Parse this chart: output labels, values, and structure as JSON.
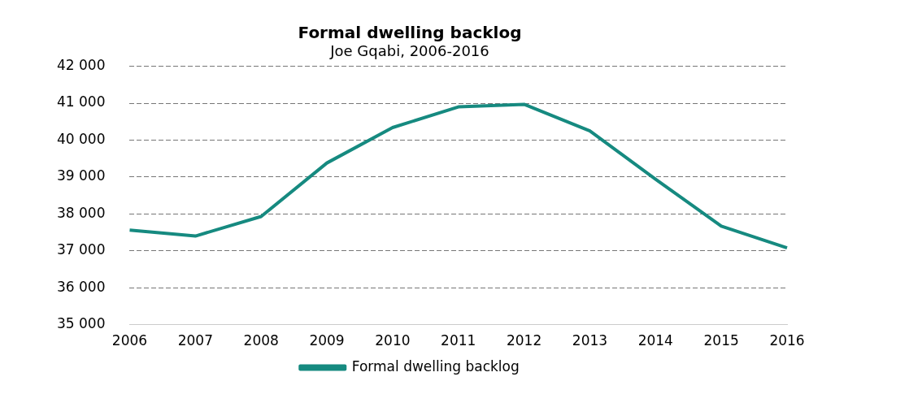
{
  "chart_data": {
    "type": "line",
    "title": "Formal dwelling backlog",
    "subtitle": "Joe Gqabi, 2006-2016",
    "categories": [
      "2006",
      "2007",
      "2008",
      "2009",
      "2010",
      "2011",
      "2012",
      "2013",
      "2014",
      "2015",
      "2016"
    ],
    "series": [
      {
        "name": "Formal dwelling backlog",
        "color": "#168a80",
        "values": [
          37560,
          37400,
          37930,
          39380,
          40340,
          40900,
          40970,
          40250,
          38940,
          37670,
          37080
        ]
      }
    ],
    "ylim": [
      35000,
      42000
    ],
    "yticks": [
      {
        "value": 35000,
        "label": "35 000"
      },
      {
        "value": 36000,
        "label": "36 000"
      },
      {
        "value": 37000,
        "label": "37 000"
      },
      {
        "value": 38000,
        "label": "38 000"
      },
      {
        "value": 39000,
        "label": "39 000"
      },
      {
        "value": 40000,
        "label": "40 000"
      },
      {
        "value": 41000,
        "label": "41 000"
      },
      {
        "value": 42000,
        "label": "42 000"
      }
    ],
    "grid": "y",
    "legend": "bottom",
    "marker": "none",
    "line_style": "solid"
  }
}
